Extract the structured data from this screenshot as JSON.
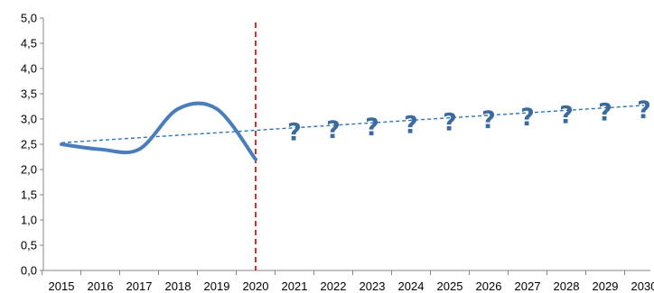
{
  "chart_data": {
    "type": "line",
    "title": "",
    "xlabel": "",
    "ylabel": "",
    "x": [
      "2015",
      "2016",
      "2017",
      "2018",
      "2019",
      "2020",
      "2021",
      "2022",
      "2023",
      "2024",
      "2025",
      "2026",
      "2027",
      "2028",
      "2029",
      "2030"
    ],
    "ylim": [
      0.0,
      5.0
    ],
    "y_ticks": [
      "0,0",
      "0,5",
      "1,0",
      "1,5",
      "2,0",
      "2,5",
      "3,0",
      "3,5",
      "4,0",
      "4,5",
      "5,0"
    ],
    "grid": false,
    "series": [
      {
        "kind": "actual",
        "style": "solid-smooth",
        "color": "#4A7EBB",
        "points": [
          {
            "x": "2015",
            "y": 2.5
          },
          {
            "x": "2016",
            "y": 2.4
          },
          {
            "x": "2017",
            "y": 2.4
          },
          {
            "x": "2018",
            "y": 3.2
          },
          {
            "x": "2019",
            "y": 3.2
          },
          {
            "x": "2020",
            "y": 2.2
          }
        ]
      },
      {
        "kind": "trend",
        "style": "dashed",
        "color": "#2E75B6",
        "points": [
          {
            "x": "2015",
            "y": 2.53
          },
          {
            "x": "2030",
            "y": 3.27
          }
        ]
      }
    ],
    "reference_line": {
      "x": "2020",
      "style": "dashed",
      "color": "#C00000"
    },
    "annotations": {
      "text": "?",
      "color": "#3A6A9E",
      "x": [
        "2021",
        "2022",
        "2023",
        "2024",
        "2025",
        "2026",
        "2027",
        "2028",
        "2029",
        "2030"
      ]
    }
  }
}
